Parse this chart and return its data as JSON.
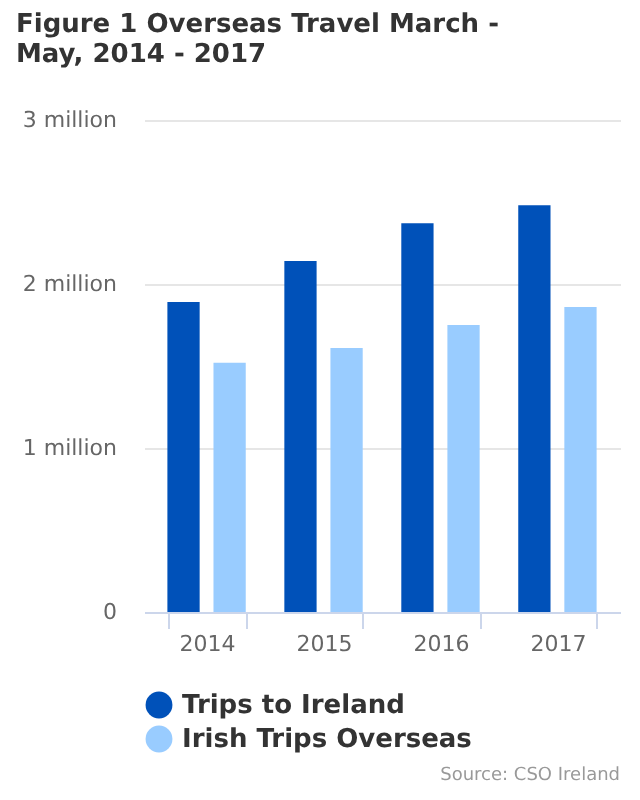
{
  "chart_data": {
    "type": "bar",
    "title": "Figure 1 Overseas Travel March - May, 2014 - 2017",
    "categories": [
      "2014",
      "2015",
      "2016",
      "2017"
    ],
    "series": [
      {
        "name": "Trips to Ireland",
        "color": "#0051b9",
        "values": [
          1890000,
          2140000,
          2370000,
          2480000
        ]
      },
      {
        "name": "Irish Trips Overseas",
        "color": "#99ccff",
        "values": [
          1520000,
          1610000,
          1750000,
          1860000
        ]
      }
    ],
    "ylim": [
      0,
      3000000
    ],
    "yticks": [
      {
        "value": 0,
        "label": "0"
      },
      {
        "value": 1000000,
        "label": "1 million"
      },
      {
        "value": 2000000,
        "label": "2 million"
      },
      {
        "value": 3000000,
        "label": "3 million"
      }
    ],
    "grid": "y",
    "legend": "bottom",
    "annotations": [
      "Source: CSO Ireland"
    ]
  }
}
